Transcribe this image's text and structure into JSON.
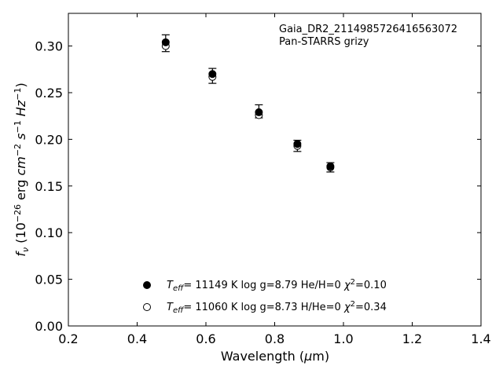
{
  "chart_data": {
    "type": "scatter",
    "annotation": [
      "Gaia_DR2_2114985726416563072",
      "Pan-STARRS grizy"
    ],
    "xlabel": "Wavelength (μm)",
    "ylabel": "f_ν (10^−26 erg cm^−2 s^−1 Hz^−1)",
    "xlim": [
      0.2,
      1.4
    ],
    "ylim": [
      0.0,
      0.335
    ],
    "xticks": [
      "0.2",
      "0.4",
      "0.6",
      "0.8",
      "1.0",
      "1.2",
      "1.4"
    ],
    "yticks": [
      "0.00",
      "0.05",
      "0.10",
      "0.15",
      "0.20",
      "0.25",
      "0.30"
    ],
    "observed": {
      "x": [
        0.483,
        0.619,
        0.754,
        0.866,
        0.962
      ],
      "y": [
        0.303,
        0.268,
        0.23,
        0.193,
        0.17
      ],
      "err": [
        0.009,
        0.008,
        0.007,
        0.006,
        0.005
      ]
    },
    "series": [
      {
        "name": "T_eff= 11149 K  log g=8.79  He/H=0  χ²=0.10",
        "marker": "filled",
        "x": [
          0.483,
          0.619,
          0.754,
          0.866,
          0.962
        ],
        "y": [
          0.304,
          0.27,
          0.229,
          0.195,
          0.171
        ]
      },
      {
        "name": "T_eff= 11060 K  log g=8.73  H/He=0  χ²=0.34",
        "marker": "open",
        "x": [
          0.483,
          0.619,
          0.754,
          0.866,
          0.962
        ],
        "y": [
          0.3,
          0.267,
          0.226,
          0.193,
          0.17
        ]
      }
    ],
    "legend": [
      {
        "teff": "11149 K",
        "logg": "log g=8.79",
        "comp": "He/H=0",
        "chi": "=0.10"
      },
      {
        "teff": "11060 K",
        "logg": "log g=8.73",
        "comp": "H/He=0",
        "chi": "=0.34"
      }
    ],
    "grid": false,
    "legend_position": "bottom-center",
    "colors": {
      "marker": "#000000",
      "axis": "#000000"
    }
  }
}
